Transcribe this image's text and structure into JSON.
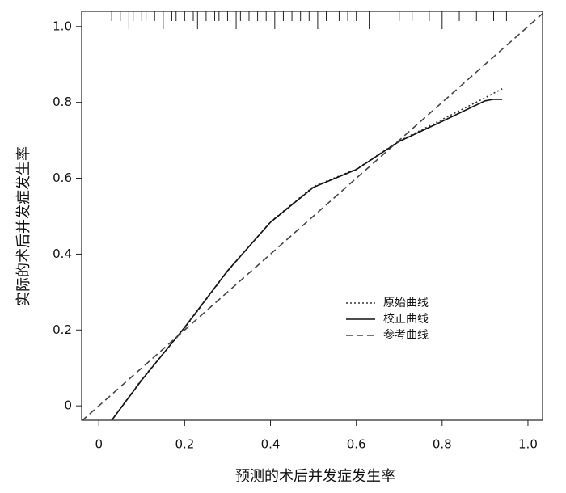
{
  "chart_data": {
    "type": "line",
    "x_label": "预测的术后并发症发生率",
    "y_label": "实际的术后并发症发生率",
    "xlim": [
      -0.04,
      1.034
    ],
    "ylim": [
      -0.038,
      1.04
    ],
    "xticks": [
      0,
      0.2,
      0.4,
      0.6,
      0.8,
      {
        "value": 1,
        "label": "1.0"
      }
    ],
    "yticks": [
      0,
      0.2,
      0.4,
      0.6,
      0.8,
      {
        "value": 1,
        "label": "1.0"
      }
    ],
    "legend": "right",
    "series": [
      {
        "name": "原始曲线",
        "color": "#333333",
        "style": "dotted",
        "x": [
          0.03,
          0.1,
          0.2,
          0.3,
          0.4,
          0.5,
          0.6,
          0.7,
          0.8,
          0.9,
          0.94
        ],
        "values": [
          -0.038,
          0.07,
          0.205,
          0.355,
          0.485,
          0.578,
          0.624,
          0.698,
          0.755,
          0.812,
          0.836
        ]
      },
      {
        "name": "校正曲线",
        "color": "#111111",
        "style": "solid",
        "x": [
          0.03,
          0.1,
          0.2,
          0.3,
          0.4,
          0.5,
          0.6,
          0.7,
          0.8,
          0.9,
          0.92,
          0.94
        ],
        "values": [
          -0.038,
          0.068,
          0.207,
          0.356,
          0.484,
          0.576,
          0.623,
          0.697,
          0.75,
          0.804,
          0.808,
          0.808
        ]
      },
      {
        "name": "参考曲线",
        "color": "#444444",
        "style": "dashed",
        "x": [
          -0.04,
          1.034
        ],
        "values": [
          -0.04,
          1.034
        ]
      }
    ],
    "rug": [
      0.03,
      0.05,
      0.07,
      0.08,
      0.1,
      0.11,
      0.13,
      0.15,
      0.17,
      0.18,
      0.2,
      0.22,
      0.23,
      0.25,
      0.27,
      0.28,
      0.3,
      0.32,
      0.33,
      0.35,
      0.37,
      0.39,
      0.41,
      0.43,
      0.45,
      0.47,
      0.49,
      0.51,
      0.53,
      0.56,
      0.58,
      0.6,
      0.63,
      0.66,
      0.7,
      0.73,
      0.77,
      0.8,
      0.84,
      0.88,
      0.92,
      0.95
    ]
  }
}
